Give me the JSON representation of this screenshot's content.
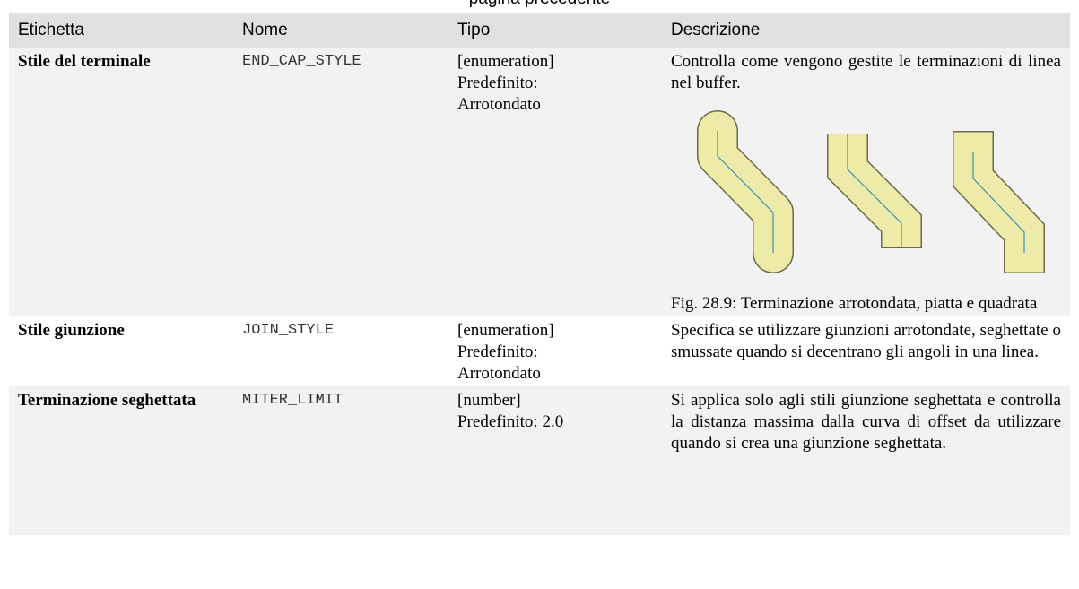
{
  "header": {
    "note": "pagina precedente"
  },
  "table": {
    "header": [
      "Etichetta",
      "Nome",
      "Tipo",
      "Descrizione"
    ],
    "rows": [
      {
        "label": "Stile del terminale",
        "name": "END_CAP_STYLE",
        "type": "[enumeration]",
        "default": "Predefinito: Arrotondato",
        "description": "Controlla come vengono gestite le terminazioni di linea nel buffer.",
        "figure_caption": "Fig. 28.9: Terminazione arrotondata, piatta e quadrata"
      },
      {
        "label": "Stile giunzione",
        "name": "JOIN_STYLE",
        "type": "[enumeration]",
        "default": "Predefinito: Arrotondato",
        "description": "Specifica se utilizzare giunzioni arrotondate, seghettate o smussate quando si decentrano gli angoli in una linea."
      },
      {
        "label": "Terminazione seghettata",
        "name": "MITER_LIMIT",
        "type": "[number]",
        "default": "Predefinito: 2.0",
        "description": "Si applica solo agli stili giunzione seghettata e controlla la distanza massima dalla curva di offset da utilizzare quando si crea una giunzione seghettata."
      }
    ]
  }
}
